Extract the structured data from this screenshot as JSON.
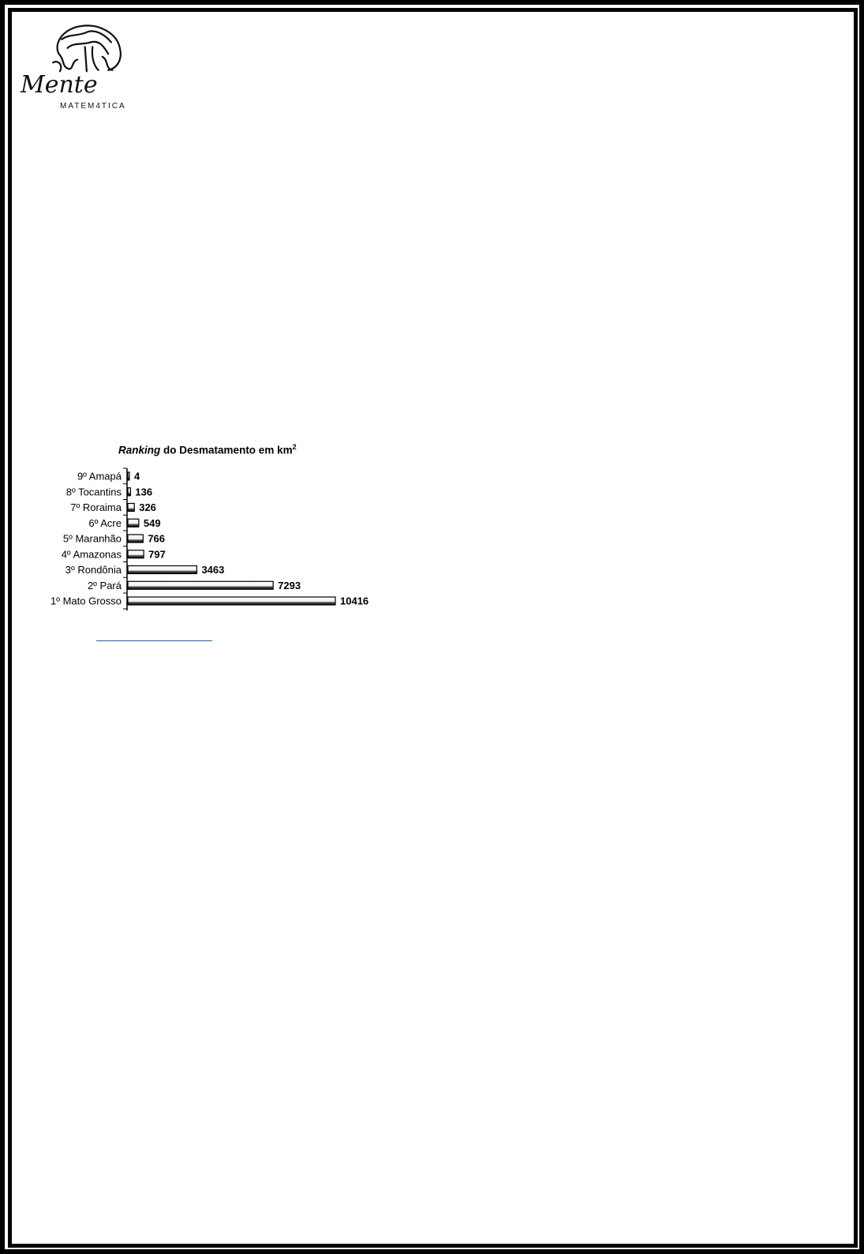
{
  "logo": {
    "name": "Mente",
    "subtitle": "MATEM4TICA"
  },
  "chart_data": {
    "type": "bar",
    "orientation": "horizontal",
    "title": "Ranking do Desmatamento em km²",
    "title_parts": {
      "italic": "Ranking",
      "rest": "do Desmatamento em km",
      "sup": "2"
    },
    "categories": [
      "9º Amapá",
      "8º Tocantins",
      "7º Roraima",
      "6º Acre",
      "5º Maranhão",
      "4º Amazonas",
      "3º Rondônia",
      "2º Pará",
      "1º Mato Grosso"
    ],
    "values": [
      4,
      136,
      326,
      549,
      766,
      797,
      3463,
      7293,
      10416
    ],
    "xlim": [
      0,
      10416
    ],
    "grid": false,
    "bar_color": "#ffffff",
    "bar_outline": "#000000"
  },
  "link": {
    "text": ""
  }
}
